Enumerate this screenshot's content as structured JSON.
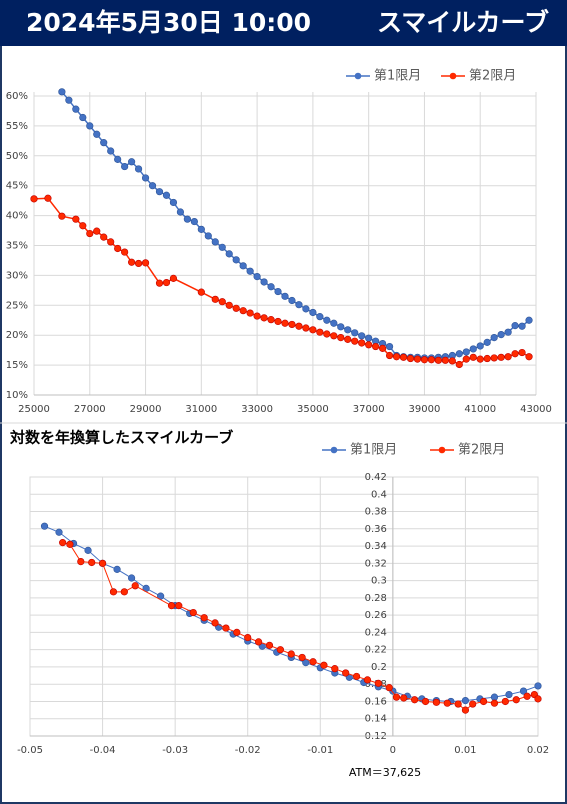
{
  "header": {
    "date": "2024年5月30日 10:00",
    "title": "スマイルカーブ"
  },
  "chart_data": [
    {
      "type": "line",
      "legend": "top-right",
      "grid": true,
      "xlim": [
        25000,
        43000
      ],
      "xticks": [
        25000,
        27000,
        29000,
        31000,
        33000,
        35000,
        37000,
        39000,
        41000,
        43000
      ],
      "ylim": [
        10,
        60
      ],
      "yticks": [
        {
          "value": 10,
          "label": "10%"
        },
        {
          "value": 15,
          "label": "15%"
        },
        {
          "value": 20,
          "label": "20%"
        },
        {
          "value": 25,
          "label": "25%"
        },
        {
          "value": 30,
          "label": "30%"
        },
        {
          "value": 35,
          "label": "35%"
        },
        {
          "value": 40,
          "label": "40%"
        },
        {
          "value": 45,
          "label": "45%"
        },
        {
          "value": 50,
          "label": "50%"
        },
        {
          "value": 55,
          "label": "55%"
        },
        {
          "value": 60,
          "label": "60%"
        }
      ],
      "series": [
        {
          "name": "第1限月",
          "color": "#4472c4",
          "x": [
            26000,
            26250,
            26500,
            26750,
            27000,
            27250,
            27500,
            27750,
            28000,
            28250,
            28500,
            28750,
            29000,
            29250,
            29500,
            29750,
            30000,
            30250,
            30500,
            30750,
            31000,
            31250,
            31500,
            31750,
            32000,
            32250,
            32500,
            32750,
            33000,
            33250,
            33500,
            33750,
            34000,
            34250,
            34500,
            34750,
            35000,
            35250,
            35500,
            35750,
            36000,
            36250,
            36500,
            36750,
            37000,
            37250,
            37500,
            37750,
            38000,
            38250,
            38500,
            38750,
            39000,
            39250,
            39500,
            39750,
            40000,
            40250,
            40500,
            40750,
            41000,
            41250,
            41500,
            41750,
            42000,
            42250,
            42500,
            42750
          ],
          "values": [
            60.7,
            59.3,
            57.8,
            56.4,
            55.0,
            53.6,
            52.2,
            50.8,
            49.4,
            48.2,
            49.0,
            47.8,
            46.3,
            45.0,
            44.0,
            43.4,
            42.2,
            40.6,
            39.4,
            39.0,
            37.7,
            36.6,
            35.6,
            34.7,
            33.6,
            32.6,
            31.6,
            30.7,
            29.8,
            28.9,
            28.1,
            27.3,
            26.5,
            25.8,
            25.1,
            24.4,
            23.8,
            23.1,
            22.5,
            22.0,
            21.4,
            20.9,
            20.4,
            19.9,
            19.5,
            19.0,
            18.6,
            18.1,
            16.6,
            16.4,
            16.3,
            16.3,
            16.2,
            16.2,
            16.3,
            16.4,
            16.6,
            16.9,
            17.2,
            17.7,
            18.2,
            18.8,
            19.6,
            20.1,
            20.5,
            21.6,
            21.5,
            22.5
          ]
        },
        {
          "name": "第2限月",
          "color": "#ff2a00",
          "x": [
            25000,
            25500,
            26000,
            26500,
            26750,
            27000,
            27250,
            27500,
            27750,
            28000,
            28250,
            28500,
            28750,
            29000,
            29500,
            29750,
            30000,
            31000,
            31500,
            31750,
            32000,
            32250,
            32500,
            32750,
            33000,
            33250,
            33500,
            33750,
            34000,
            34250,
            34500,
            34750,
            35000,
            35250,
            35500,
            35750,
            36000,
            36250,
            36500,
            36750,
            37000,
            37250,
            37500,
            37750,
            38000,
            38250,
            38500,
            38750,
            39000,
            39250,
            39500,
            39750,
            40000,
            40250,
            40500,
            40750,
            41000,
            41250,
            41500,
            41750,
            42000,
            42250,
            42500,
            42750
          ],
          "values": [
            42.8,
            42.9,
            39.9,
            39.4,
            38.3,
            37.0,
            37.4,
            36.4,
            35.6,
            34.5,
            33.9,
            32.2,
            32.0,
            32.1,
            28.7,
            28.8,
            29.5,
            27.2,
            26.0,
            25.6,
            25.0,
            24.5,
            24.1,
            23.7,
            23.2,
            22.9,
            22.6,
            22.3,
            22.0,
            21.8,
            21.5,
            21.2,
            20.9,
            20.5,
            20.2,
            19.9,
            19.6,
            19.3,
            19.0,
            18.7,
            18.4,
            18.1,
            17.8,
            16.6,
            16.4,
            16.3,
            16.1,
            16.0,
            15.9,
            15.9,
            15.8,
            15.8,
            15.7,
            15.1,
            16.0,
            16.3,
            16.0,
            16.1,
            16.2,
            16.3,
            16.4,
            16.9,
            17.1,
            16.4
          ]
        }
      ]
    },
    {
      "type": "line",
      "title": "対数を年換算したスマイルカーブ",
      "legend": "top-right",
      "grid": true,
      "xlim": [
        -0.05,
        0.02
      ],
      "xticks": [
        -0.05,
        -0.04,
        -0.03,
        -0.02,
        -0.01,
        0,
        0.01,
        0.02
      ],
      "ylim": [
        0.12,
        0.42
      ],
      "yticks": [
        0.12,
        0.14,
        0.16,
        0.18,
        0.2,
        0.22,
        0.24,
        0.26,
        0.28,
        0.3,
        0.32,
        0.34,
        0.36,
        0.38,
        0.4,
        0.42
      ],
      "annotation": "ATM＝37,625",
      "series": [
        {
          "name": "第1限月",
          "color": "#4472c4",
          "x": [
            -0.048,
            -0.046,
            -0.044,
            -0.042,
            -0.04,
            -0.038,
            -0.036,
            -0.034,
            -0.032,
            -0.03,
            -0.028,
            -0.026,
            -0.024,
            -0.022,
            -0.02,
            -0.018,
            -0.016,
            -0.014,
            -0.012,
            -0.01,
            -0.008,
            -0.006,
            -0.004,
            -0.002,
            0,
            0.002,
            0.004,
            0.006,
            0.008,
            0.01,
            0.012,
            0.014,
            0.016,
            0.018,
            0.02
          ],
          "values": [
            0.363,
            0.356,
            0.343,
            0.335,
            0.32,
            0.313,
            0.303,
            0.291,
            0.282,
            0.271,
            0.262,
            0.254,
            0.246,
            0.238,
            0.23,
            0.224,
            0.217,
            0.211,
            0.205,
            0.199,
            0.193,
            0.188,
            0.182,
            0.177,
            0.172,
            0.166,
            0.163,
            0.161,
            0.16,
            0.161,
            0.163,
            0.165,
            0.168,
            0.172,
            0.178
          ]
        },
        {
          "name": "第2限月",
          "color": "#ff2a00",
          "x": [
            -0.0455,
            -0.0445,
            -0.043,
            -0.0415,
            -0.04,
            -0.0385,
            -0.037,
            -0.0355,
            -0.0305,
            -0.0295,
            -0.0275,
            -0.026,
            -0.0245,
            -0.023,
            -0.0215,
            -0.02,
            -0.0185,
            -0.017,
            -0.0155,
            -0.014,
            -0.0125,
            -0.011,
            -0.0095,
            -0.008,
            -0.0065,
            -0.005,
            -0.0035,
            -0.002,
            -0.0005,
            0.0005,
            0.0015,
            0.003,
            0.0045,
            0.006,
            0.0075,
            0.009,
            0.01,
            0.011,
            0.0125,
            0.014,
            0.0155,
            0.017,
            0.0185,
            0.0195,
            0.02
          ],
          "values": [
            0.344,
            0.342,
            0.322,
            0.321,
            0.32,
            0.287,
            0.287,
            0.294,
            0.271,
            0.271,
            0.263,
            0.257,
            0.251,
            0.245,
            0.24,
            0.234,
            0.229,
            0.225,
            0.22,
            0.215,
            0.211,
            0.206,
            0.202,
            0.198,
            0.193,
            0.189,
            0.185,
            0.181,
            0.176,
            0.165,
            0.164,
            0.162,
            0.16,
            0.159,
            0.158,
            0.157,
            0.15,
            0.157,
            0.16,
            0.158,
            0.16,
            0.162,
            0.166,
            0.168,
            0.163
          ]
        }
      ]
    }
  ]
}
